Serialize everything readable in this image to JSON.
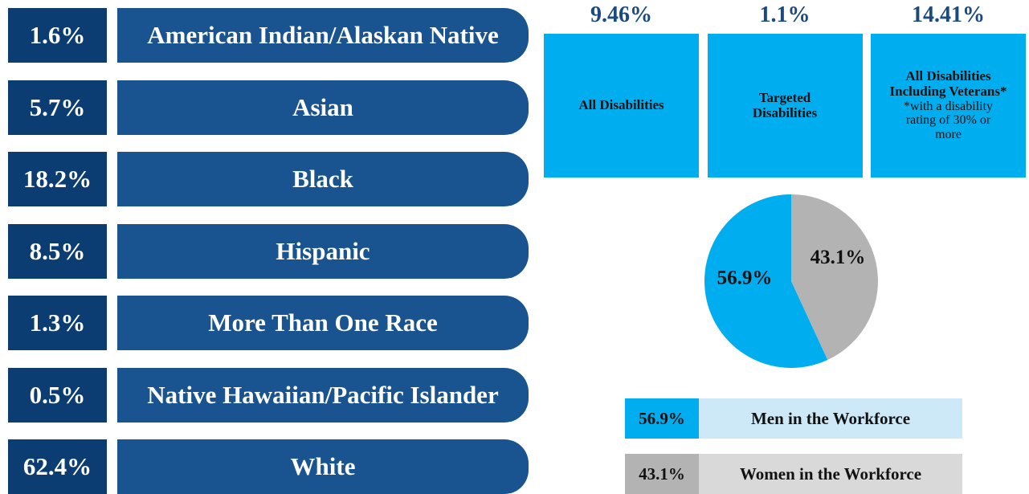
{
  "race": {
    "rows": [
      {
        "value": "1.6%",
        "label": "American Indian/Alaskan Native"
      },
      {
        "value": "5.7%",
        "label": "Asian"
      },
      {
        "value": "18.2%",
        "label": "Black"
      },
      {
        "value": "8.5%",
        "label": "Hispanic"
      },
      {
        "value": "1.3%",
        "label": "More Than One Race"
      },
      {
        "value": "0.5%",
        "label": "Native Hawaiian/Pacific Islander"
      },
      {
        "value": "62.4%",
        "label": "White"
      }
    ]
  },
  "disabilities": [
    {
      "value": "9.46%",
      "label": "All Disabilities"
    },
    {
      "value": "1.1%",
      "label": "Targeted Disabilities"
    },
    {
      "value": "14.41%",
      "label": "All Disabilities Including Veterans*",
      "note": "*with a disability rating of 30% or more"
    }
  ],
  "chart_data": {
    "type": "pie",
    "categories": [
      "Men in the Workforce",
      "Women in the Workforce"
    ],
    "values": [
      56.9,
      43.1
    ],
    "value_labels": [
      "56.9%",
      "43.1%"
    ],
    "colors": [
      "#00aeef",
      "#b3b3b3"
    ]
  }
}
